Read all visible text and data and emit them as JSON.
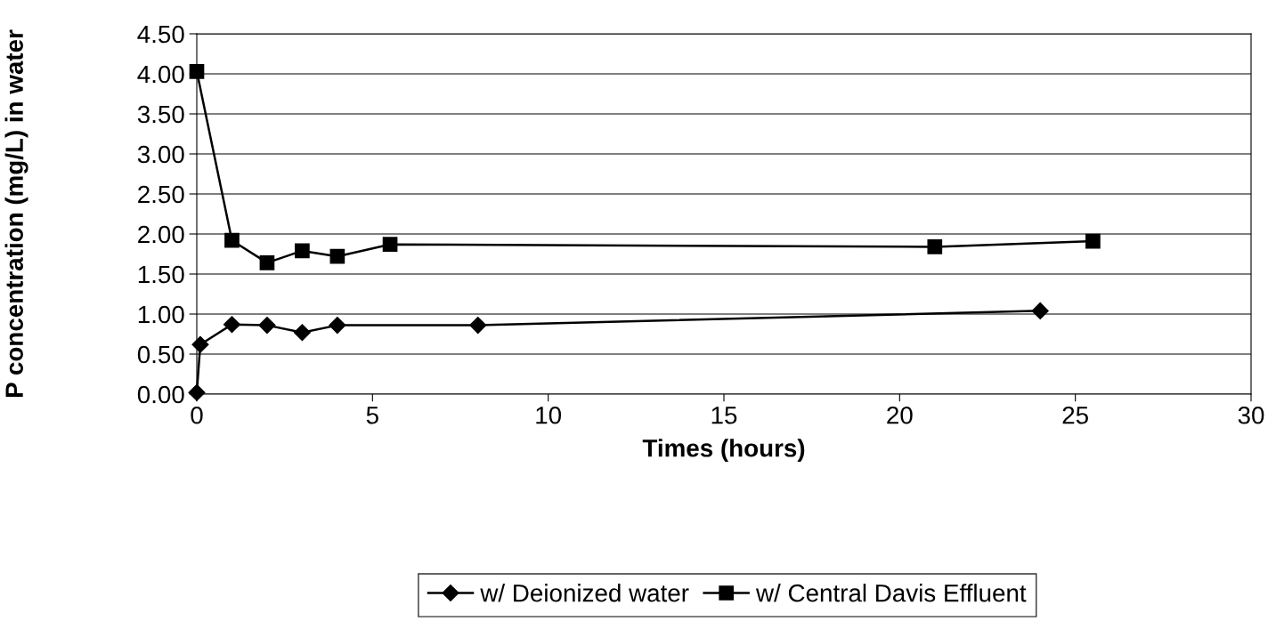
{
  "chart_data": {
    "type": "line",
    "xlabel": "Times (hours)",
    "ylabel": "P concentration (mg/L) in water",
    "xlim": [
      0,
      30
    ],
    "xticks": [
      0,
      5,
      10,
      15,
      20,
      25,
      30
    ],
    "ylim": [
      0,
      4.5
    ],
    "yticks": [
      {
        "value": 0,
        "label": "0.00"
      },
      {
        "value": 0.5,
        "label": "0.50"
      },
      {
        "value": 1,
        "label": "1.00"
      },
      {
        "value": 1.5,
        "label": "1.50"
      },
      {
        "value": 2,
        "label": "2.00"
      },
      {
        "value": 2.5,
        "label": "2.50"
      },
      {
        "value": 3,
        "label": "3.00"
      },
      {
        "value": 3.5,
        "label": "3.50"
      },
      {
        "value": 4,
        "label": "4.00"
      },
      {
        "value": 4.5,
        "label": "4.50"
      }
    ],
    "grid": "y",
    "legend": "bottom",
    "series": [
      {
        "name": "w/ Deionized water",
        "color": "#000000",
        "marker": "diamond",
        "x": [
          0,
          0.1,
          1,
          2,
          3,
          4,
          8,
          24
        ],
        "values": [
          0.02,
          0.62,
          0.87,
          0.86,
          0.77,
          0.86,
          0.86,
          1.04
        ]
      },
      {
        "name": "w/ Central Davis Effluent",
        "color": "#000000",
        "marker": "square",
        "x": [
          0,
          1,
          2,
          3,
          4,
          5.5,
          21,
          25.5
        ],
        "values": [
          4.03,
          1.92,
          1.64,
          1.79,
          1.72,
          1.87,
          1.84,
          1.91
        ]
      }
    ]
  }
}
